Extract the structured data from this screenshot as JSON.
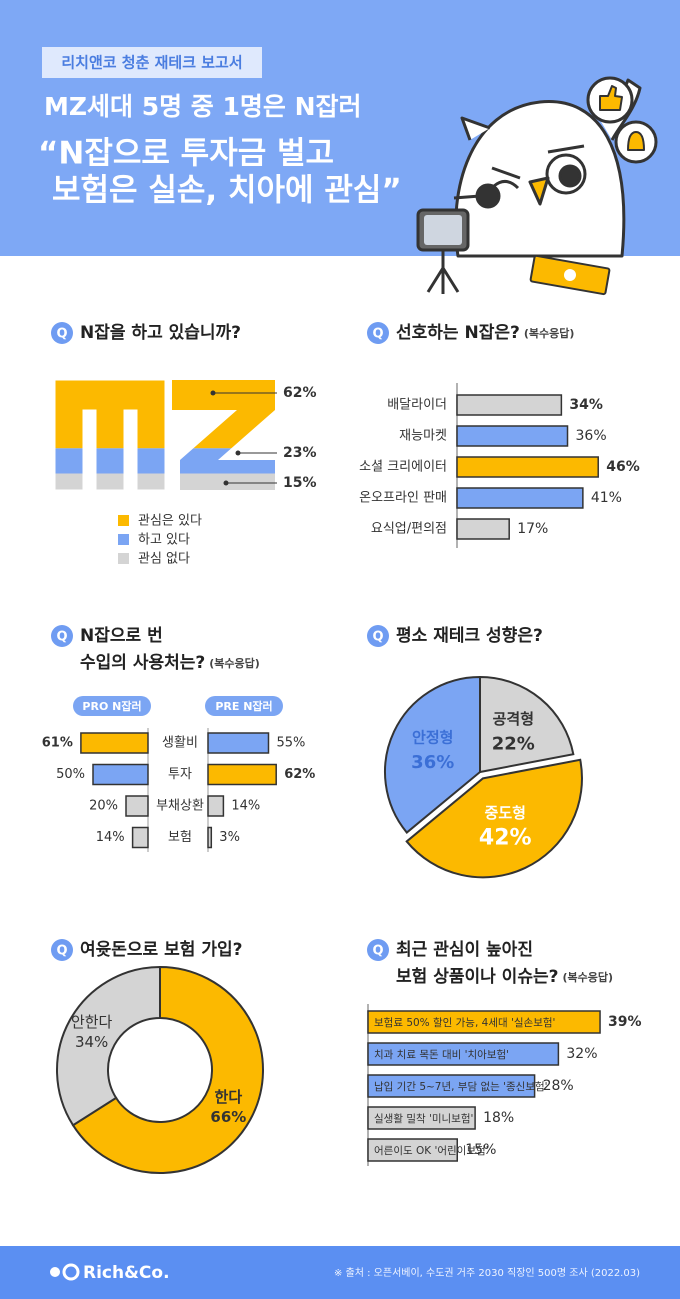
{
  "header": {
    "badge": "리치앤코 청춘 재테크 보고서",
    "title": "MZ세대 5명 중 1명은 N잡러",
    "quote_lines": [
      "“N잡으로 투자금 벌고",
      "보험은 실손, 치아에 관심”"
    ]
  },
  "q_mark": "Q",
  "chart_data": [
    {
      "type": "mz_stacked",
      "title": "N잡을 하고 있습니까?",
      "series": [
        {
          "name": "관심은 있다",
          "color": "#fcb900",
          "values": [
            62
          ],
          "value_labels": [
            "62%"
          ]
        },
        {
          "name": "하고 있다",
          "color": "#7ba5f3",
          "values": [
            23
          ],
          "value_labels": [
            "23%"
          ]
        },
        {
          "name": "관심 없다",
          "color": "#d4d4d4",
          "values": [
            15
          ],
          "value_labels": [
            "15%"
          ]
        }
      ]
    },
    {
      "type": "hbar",
      "title": "선호하는 N잡은?",
      "subtitle": "(복수응답)",
      "categories": [
        "배달라이더",
        "재능마켓",
        "소셜 크리에이터",
        "온오프라인 판매",
        "요식업/편의점"
      ],
      "values": [
        34,
        36,
        46,
        41,
        17
      ],
      "value_labels": [
        "34%",
        "36%",
        "46%",
        "41%",
        "17%"
      ],
      "colors": [
        "#d4d4d4",
        "#7ba5f3",
        "#fcb900",
        "#7ba5f3",
        "#d4d4d4"
      ]
    },
    {
      "type": "butterfly",
      "title_lines": [
        "N잡으로 번",
        "수입의 사용처는?"
      ],
      "subtitle": "(복수응답)",
      "categories": [
        "생활비",
        "투자",
        "부채상환",
        "보험"
      ],
      "series": [
        {
          "name": "PRO N잡러",
          "color": "#7ba5f3",
          "values": [
            61,
            50,
            20,
            14
          ],
          "value_labels": [
            "61%",
            "50%",
            "20%",
            "14%"
          ],
          "colors": [
            "#fcb900",
            "#7ba5f3",
            "#d4d4d4",
            "#d4d4d4"
          ]
        },
        {
          "name": "PRE N잡러",
          "color": "#7ba5f3",
          "values": [
            55,
            62,
            14,
            3
          ],
          "value_labels": [
            "55%",
            "62%",
            "14%",
            "3%"
          ],
          "colors": [
            "#7ba5f3",
            "#fcb900",
            "#d4d4d4",
            "#d4d4d4"
          ]
        }
      ]
    },
    {
      "type": "pie",
      "title": "평소 재테크 성향은?",
      "categories": [
        "공격형",
        "중도형",
        "안정형"
      ],
      "values": [
        22,
        42,
        36
      ],
      "value_labels": [
        "22%",
        "42%",
        "36%"
      ],
      "colors": [
        "#d4d4d4",
        "#fcb900",
        "#7ba5f3"
      ],
      "label_colors": [
        "#333333",
        "#ffffff",
        "#3b6fd6"
      ]
    },
    {
      "type": "donut",
      "title": "여윳돈으로 보험 가입?",
      "categories": [
        "한다",
        "안한다"
      ],
      "values": [
        66,
        34
      ],
      "value_labels": [
        "66%",
        "34%"
      ],
      "colors": [
        "#fcb900",
        "#d4d4d4"
      ]
    },
    {
      "type": "hbar",
      "title_lines": [
        "최근 관심이 높아진",
        "보험 상품이나 이슈는?"
      ],
      "subtitle": "(복수응답)",
      "categories": [
        "보험료 50% 할인 가능, 4세대 '실손보험'",
        "치과 치료 목돈 대비 '치아보험'",
        "납입 기간 5~7년, 부담 없는 '종신보험'",
        "실생활 밀착 '미니보험'",
        "어른이도 OK '어린이보험'"
      ],
      "values": [
        39,
        32,
        28,
        18,
        15
      ],
      "value_labels": [
        "39%",
        "32%",
        "28%",
        "18%",
        "15%"
      ],
      "colors": [
        "#fcb900",
        "#7ba5f3",
        "#7ba5f3",
        "#d4d4d4",
        "#d4d4d4"
      ]
    }
  ],
  "footer": {
    "logo": "Rich&Co.",
    "source": "※ 출처 : 오픈서베이, 수도권 거주 2030 직장인 500명 조사 (2022.03)"
  }
}
